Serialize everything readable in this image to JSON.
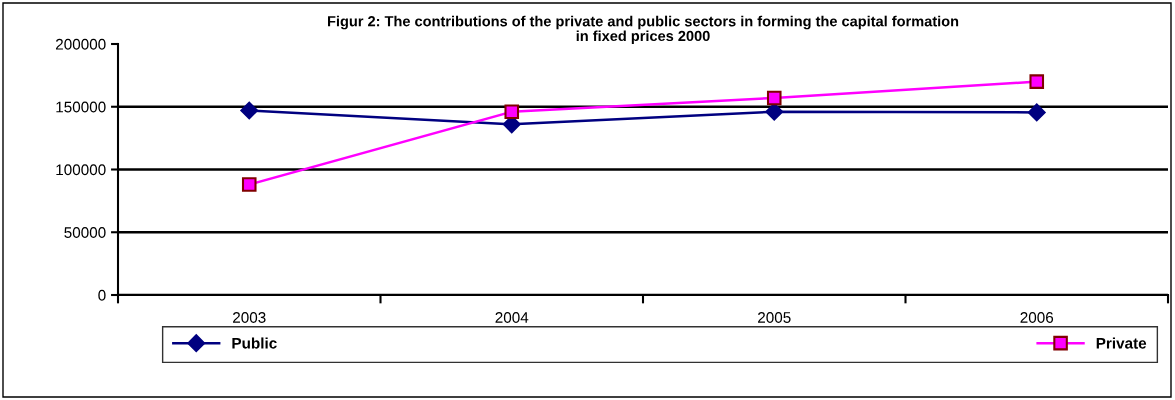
{
  "chart_data": {
    "type": "line",
    "title": "Figur 2: The contributions of the private and public sectors in forming the capital formation\nin fixed prices 2000",
    "categories": [
      "2003",
      "2004",
      "2005",
      "2006"
    ],
    "series": [
      {
        "name": "Public",
        "color": "#000080",
        "marker": "diamond",
        "values": [
          147000,
          136000,
          146000,
          145500
        ]
      },
      {
        "name": "Private",
        "color": "#ff00ff",
        "marker": "square",
        "values": [
          88000,
          146000,
          157000,
          170000
        ]
      }
    ],
    "ylim": [
      0,
      200000
    ],
    "yticks": [
      0,
      50000,
      100000,
      150000,
      200000
    ],
    "grid": "y",
    "legend": "bottom"
  }
}
